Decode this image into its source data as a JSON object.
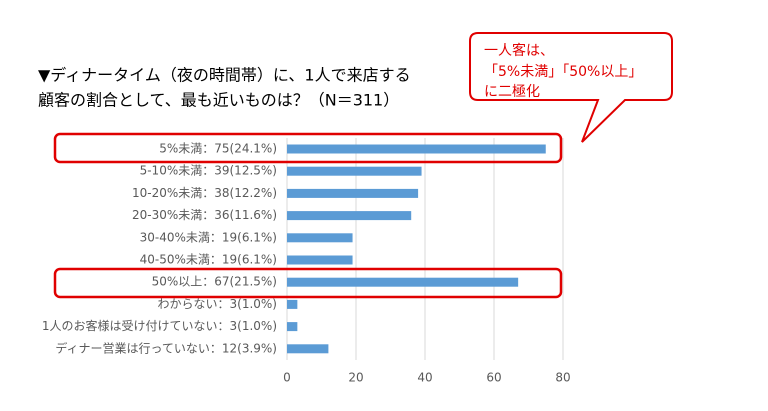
{
  "chart_data": {
    "type": "bar",
    "orientation": "horizontal",
    "title": [
      "▼ディナータイム（夜の時間帯）に、1人で来店する",
      "顧客の割合として、最も近いものは？（N＝311）"
    ],
    "annotation": [
      "一人客は、",
      "「5%未満」「50%以上」",
      "に二極化"
    ],
    "categories": [
      "5%未満：75(24.1%)",
      "5-10%未満：39(12.5%)",
      "10-20%未満：38(12.2%)",
      "20-30%未満：36(11.6%)",
      "30-40%未満：19(6.1%)",
      "40-50%未満：19(6.1%)",
      "50%以上：67(21.5%)",
      "わからない：3(1.0%)",
      "1人のお客様は受け付けていない：3(1.0%)",
      "ディナー営業は行っていない：12(3.9%)"
    ],
    "values": [
      75,
      39,
      38,
      36,
      19,
      19,
      67,
      3,
      3,
      12
    ],
    "color": "#5b9bd5",
    "xlim": [
      0,
      80
    ],
    "xticks": [
      0,
      20,
      40,
      60,
      80
    ],
    "grid": true
  }
}
